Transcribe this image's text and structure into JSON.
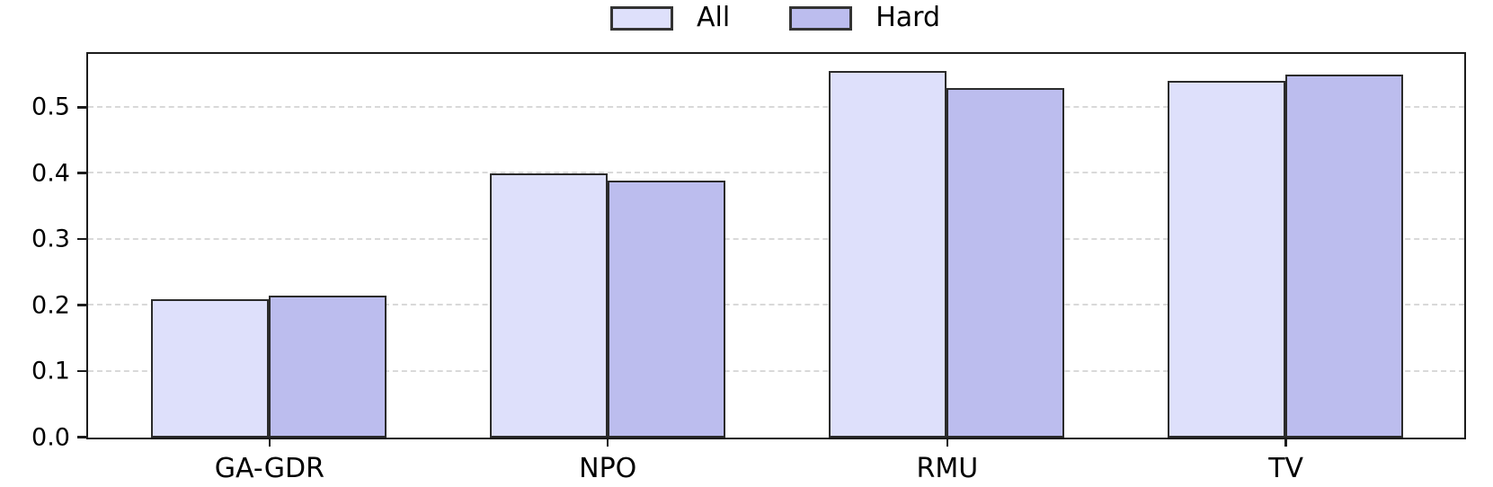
{
  "chart_data": {
    "type": "bar",
    "title": "",
    "xlabel": "",
    "ylabel": "",
    "categories": [
      "GA-GDR",
      "NPO",
      "RMU",
      "TV"
    ],
    "series": [
      {
        "name": "All",
        "values": [
          0.21,
          0.4,
          0.555,
          0.54
        ],
        "fill": "#dee0fb"
      },
      {
        "name": "Hard",
        "values": [
          0.215,
          0.39,
          0.53,
          0.55
        ],
        "fill": "#bcbdee"
      }
    ],
    "ylim": [
      0,
      0.58
    ],
    "yticks": [
      0.0,
      0.1,
      0.2,
      0.3,
      0.4,
      0.5
    ],
    "ytick_labels": [
      "0.0",
      "0.1",
      "0.2",
      "0.3",
      "0.4",
      "0.5"
    ],
    "grid": "horizontal-dashed",
    "legend_position": "top-center",
    "colors": {
      "bar_edge": "#2b2b2b",
      "gridline": "#d9d9d9",
      "spine": "#1c1c1c",
      "text": "#000000",
      "background": "#ffffff"
    }
  }
}
